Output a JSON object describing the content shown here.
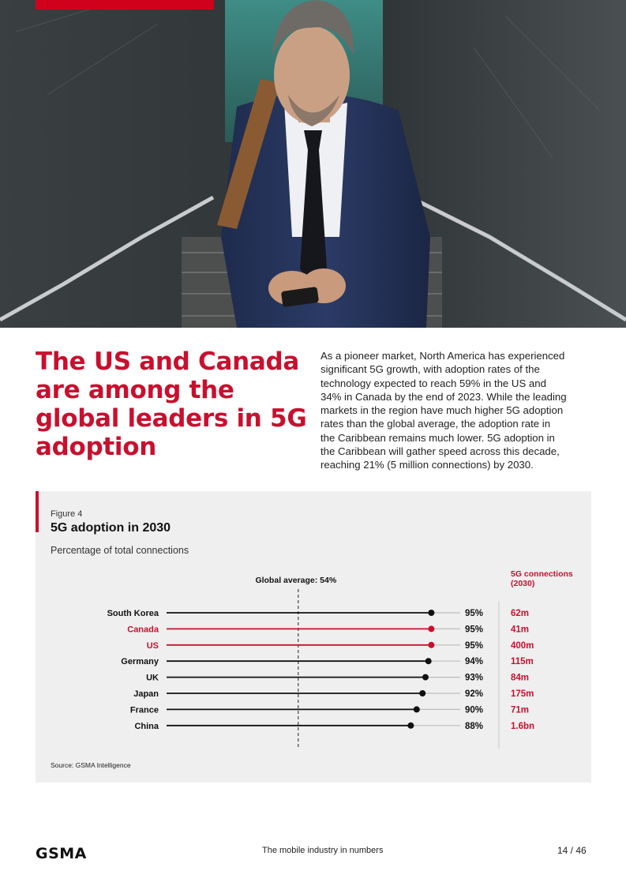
{
  "headline": {
    "lines": [
      "The US and Canada",
      "are among the",
      "global leaders in 5G",
      "adoption"
    ]
  },
  "body": {
    "lines": [
      "As a pioneer market, North America has experienced",
      "significant 5G growth, with adoption rates of the",
      "technology expected to reach 59% in the US and",
      "34% in Canada by the end of 2023. While the leading",
      "markets in the region have much higher 5G adoption",
      "rates than the global average, the adoption rate in",
      "the Caribbean remains much lower. 5G adoption in",
      "the Caribbean will gather speed across this decade,",
      "reaching 21% (5 million connections) by 2030."
    ]
  },
  "figure": {
    "label": "Figure 4",
    "title": "5G adoption in 2030",
    "subtitle": "Percentage of total connections",
    "source": "Source: GSMA Intelligence"
  },
  "chart_data": {
    "type": "scatter",
    "xlim": [
      0,
      100
    ],
    "reference_line": {
      "label": "Global average: 54%",
      "value": 54
    },
    "connections_header": [
      "5G connections",
      "(2030)"
    ],
    "categories": [
      "South Korea",
      "Canada",
      "US",
      "Germany",
      "UK",
      "Japan",
      "France",
      "China"
    ],
    "values": [
      95,
      95,
      95,
      94,
      93,
      92,
      90,
      88
    ],
    "value_labels": [
      "95%",
      "95%",
      "95%",
      "94%",
      "93%",
      "92%",
      "90%",
      "88%"
    ],
    "connections": [
      "62m",
      "41m",
      "400m",
      "115m",
      "84m",
      "175m",
      "71m",
      "1.6bn"
    ],
    "highlighted": [
      "Canada",
      "US"
    ],
    "colors": {
      "default": "#111111",
      "highlight": "#c8102e",
      "track": "#bdbdbd"
    }
  },
  "footer": {
    "logo": "GSMA",
    "center": "The mobile industry in numbers",
    "page": "14 / 46"
  },
  "hero": {
    "image": "businessman-using-smartphone-on-stairs"
  }
}
